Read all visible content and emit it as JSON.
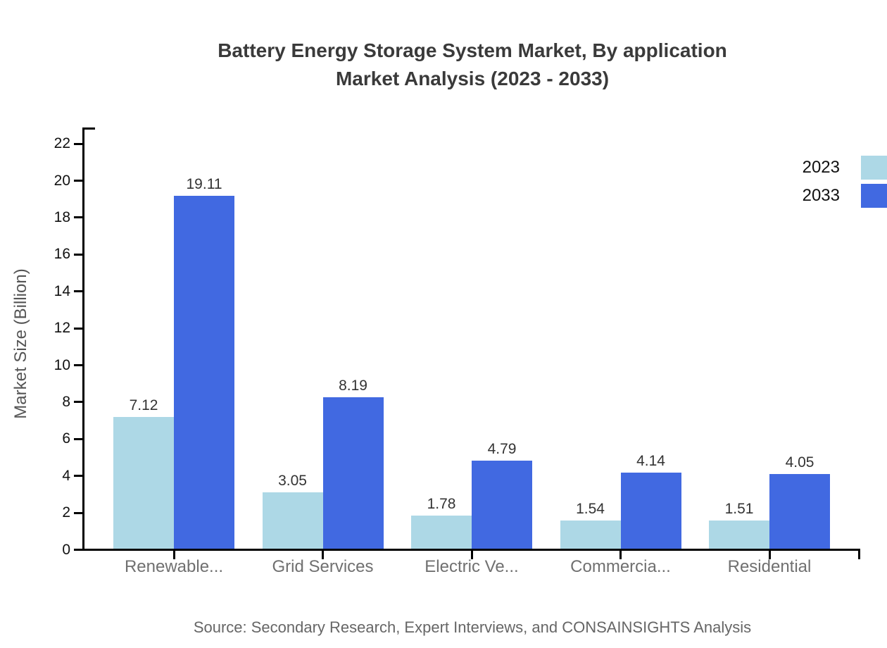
{
  "header": {
    "title_line1": "Battery Energy Storage System Market, By application",
    "title_line2": "Market Analysis (2023 - 2033)"
  },
  "chart_data": {
    "type": "bar",
    "title": "Battery Energy Storage System Market, By application Market Analysis (2023 - 2033)",
    "title_lines": [
      "Battery Energy Storage System Market, By application",
      "Market Analysis (2023 - 2033)"
    ],
    "categories": [
      "Renewable...",
      "Grid Services",
      "Electric Ve...",
      "Commercia...",
      "Residential"
    ],
    "series": [
      {
        "name": "2023",
        "color": "#ADD8E6",
        "values": [
          7.12,
          3.05,
          1.78,
          1.54,
          1.51
        ]
      },
      {
        "name": "2033",
        "color": "#4169E1",
        "values": [
          19.11,
          8.19,
          4.79,
          4.14,
          4.05
        ]
      }
    ],
    "xlabel": "",
    "ylabel": "Market Size (Billion)",
    "ylim": [
      0,
      22.8
    ],
    "yticks": [
      0,
      2,
      4,
      6,
      8,
      10,
      12,
      14,
      16,
      18,
      20,
      22
    ],
    "grid": false,
    "value_labels": true,
    "legend_position": "top-right",
    "value_label_format": "0.00"
  },
  "footer": {
    "source": "Source: Secondary Research, Expert Interviews, and CONSAINSIGHTS Analysis"
  }
}
